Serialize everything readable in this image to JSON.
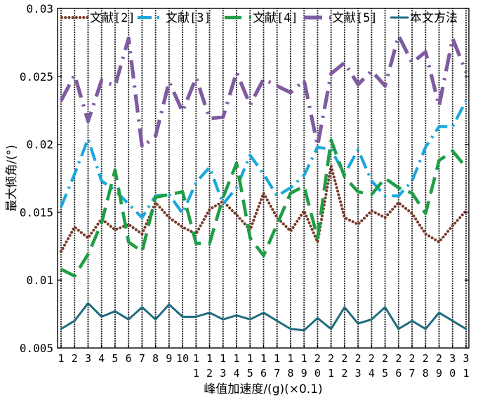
{
  "chart_data": {
    "type": "line",
    "xlabel": "峰值加速度/(g)(×0.1)",
    "ylabel": "最大倾角/(°)",
    "x": [
      1,
      2,
      3,
      4,
      5,
      6,
      7,
      8,
      9,
      10,
      11,
      12,
      13,
      14,
      15,
      16,
      17,
      18,
      19,
      20,
      21,
      22,
      23,
      24,
      25,
      26,
      27,
      28,
      29,
      30,
      31
    ],
    "x_tick_top": [
      "1",
      "2",
      "3",
      "4",
      "5",
      "6",
      "7",
      "8",
      "9",
      "10",
      "1",
      "1",
      "1",
      "1",
      "1",
      "1",
      "1",
      "1",
      "1",
      "2",
      "2",
      "2",
      "2",
      "2",
      "2",
      "2",
      "2",
      "2",
      "2",
      "3",
      "3"
    ],
    "x_tick_bottom": [
      "",
      "",
      "",
      "",
      "",
      "",
      "",
      "",
      "",
      "",
      "1",
      "2",
      "3",
      "4",
      "5",
      "6",
      "7",
      "8",
      "9",
      "0",
      "1",
      "2",
      "3",
      "4",
      "5",
      "6",
      "7",
      "8",
      "9",
      "0",
      "1"
    ],
    "ylim": [
      0.005,
      0.03
    ],
    "y_ticks": [
      "0.005",
      "0.01",
      "0.015",
      "0.02",
      "0.025",
      "0.03"
    ],
    "y_tick_values": [
      0.005,
      0.01,
      0.015,
      0.02,
      0.025,
      0.03
    ],
    "grid": "vertical dotted lines at each x tick",
    "legend_position": "top",
    "series": [
      {
        "name": "文献[2]",
        "color": "#7a3b2a",
        "style": "dotted",
        "values": [
          0.0121,
          0.0139,
          0.0131,
          0.0145,
          0.0137,
          0.0141,
          0.0134,
          0.0157,
          0.0146,
          0.0139,
          0.0134,
          0.0152,
          0.0158,
          0.0148,
          0.0137,
          0.0164,
          0.0146,
          0.0136,
          0.0151,
          0.0128,
          0.0184,
          0.0146,
          0.0141,
          0.0151,
          0.0146,
          0.0157,
          0.0149,
          0.0134,
          0.0128,
          0.014,
          0.0151
        ]
      },
      {
        "name": "文献[3]",
        "color": "#1aa8dc",
        "style": "dashdot",
        "values": [
          0.0154,
          0.0178,
          0.0204,
          0.0173,
          0.0166,
          0.0156,
          0.0146,
          0.0162,
          0.0163,
          0.0149,
          0.0172,
          0.0183,
          0.0156,
          0.0168,
          0.0192,
          0.0178,
          0.0162,
          0.0168,
          0.0177,
          0.0198,
          0.0196,
          0.0178,
          0.0196,
          0.0173,
          0.0162,
          0.0162,
          0.0173,
          0.0198,
          0.0213,
          0.0213,
          0.0232
        ]
      },
      {
        "name": "文献[4]",
        "color": "#1f9e46",
        "style": "longdash",
        "values": [
          0.0108,
          0.0103,
          0.0119,
          0.0142,
          0.0181,
          0.0128,
          0.0121,
          0.0161,
          0.0163,
          0.0165,
          0.0127,
          0.0127,
          0.0161,
          0.0186,
          0.0131,
          0.0118,
          0.0141,
          0.0164,
          0.0169,
          0.0131,
          0.0203,
          0.0176,
          0.0165,
          0.0163,
          0.0175,
          0.0168,
          0.0164,
          0.0149,
          0.0188,
          0.0195,
          0.0183
        ]
      },
      {
        "name": "文献[5]",
        "color": "#7f5ba2",
        "style": "dashdot-long",
        "values": [
          0.0232,
          0.0251,
          0.0217,
          0.0247,
          0.0243,
          0.0278,
          0.0198,
          0.0206,
          0.0246,
          0.0224,
          0.0249,
          0.0219,
          0.022,
          0.0253,
          0.0229,
          0.0248,
          0.0243,
          0.0238,
          0.0247,
          0.0199,
          0.0252,
          0.026,
          0.0244,
          0.0254,
          0.0243,
          0.028,
          0.026,
          0.0268,
          0.0228,
          0.0278,
          0.0253
        ]
      },
      {
        "name": "本文方法",
        "color": "#1f6b80",
        "style": "solid",
        "values": [
          0.0064,
          0.007,
          0.0083,
          0.0073,
          0.0077,
          0.0071,
          0.008,
          0.0071,
          0.0082,
          0.0073,
          0.0073,
          0.0076,
          0.0071,
          0.0074,
          0.0071,
          0.0076,
          0.007,
          0.0064,
          0.0063,
          0.0072,
          0.0064,
          0.008,
          0.0068,
          0.0071,
          0.008,
          0.0064,
          0.007,
          0.0064,
          0.0076,
          0.007,
          0.0064
        ]
      }
    ]
  }
}
